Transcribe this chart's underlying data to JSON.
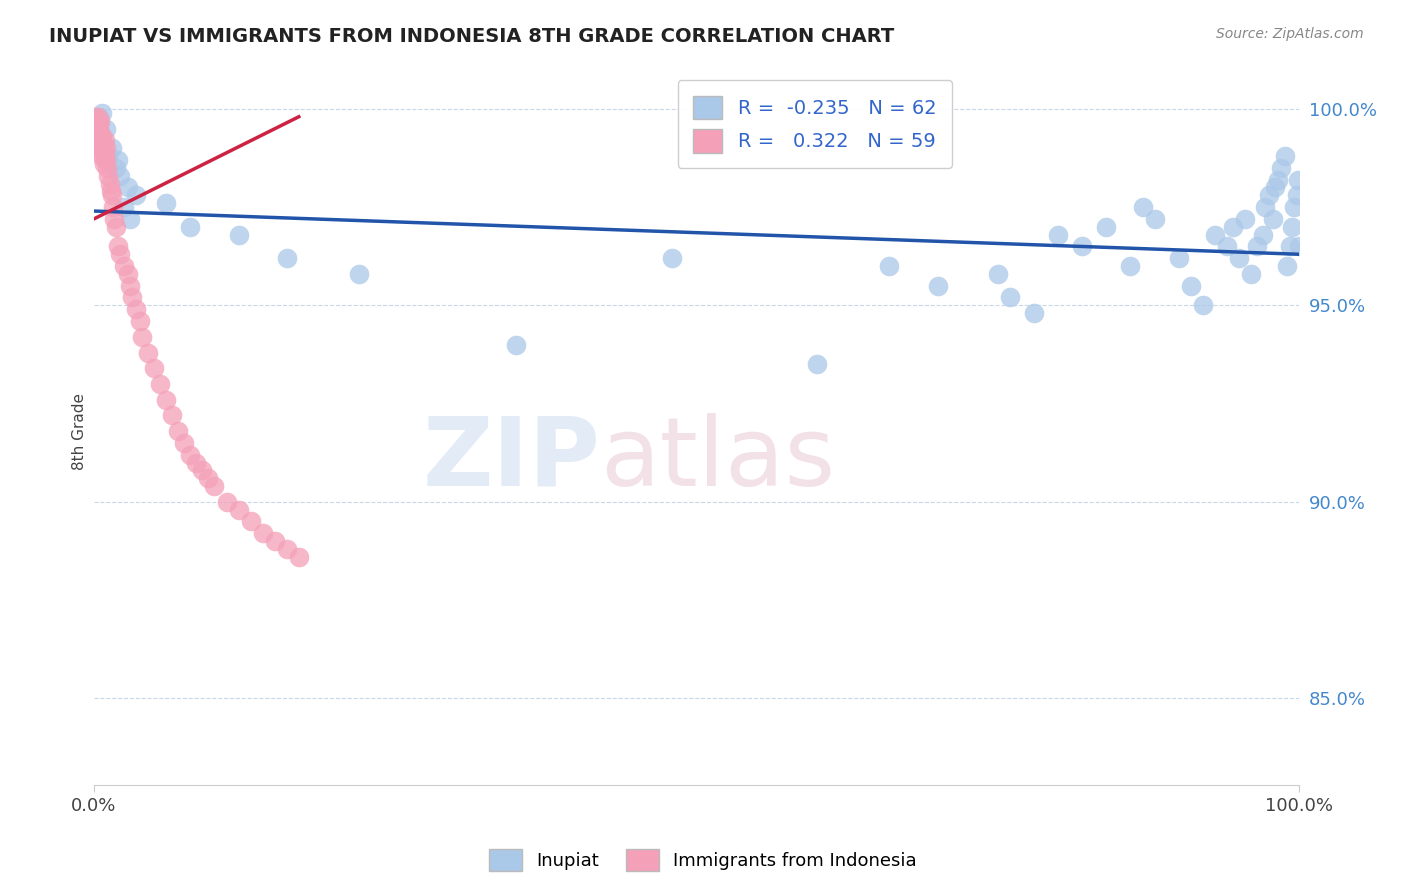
{
  "title": "INUPIAT VS IMMIGRANTS FROM INDONESIA 8TH GRADE CORRELATION CHART",
  "source": "Source: ZipAtlas.com",
  "ylabel": "8th Grade",
  "xlim": [
    0.0,
    1.0
  ],
  "ylim": [
    0.828,
    1.008
  ],
  "ytick_positions": [
    0.85,
    0.9,
    0.95,
    1.0
  ],
  "ytick_labels": [
    "85.0%",
    "90.0%",
    "95.0%",
    "100.0%"
  ],
  "blue_R": -0.235,
  "blue_N": 62,
  "pink_R": 0.322,
  "pink_N": 59,
  "blue_color": "#aac8e8",
  "pink_color": "#f4a0b8",
  "blue_line_color": "#2255aa",
  "pink_line_color": "#cc2244",
  "legend_blue_label": "Inupiat",
  "legend_pink_label": "Immigrants from Indonesia",
  "blue_x": [
    0.001,
    0.002,
    0.003,
    0.004,
    0.005,
    0.006,
    0.007,
    0.008,
    0.01,
    0.012,
    0.015,
    0.018,
    0.02,
    0.022,
    0.025,
    0.028,
    0.03,
    0.035,
    0.06,
    0.08,
    0.12,
    0.16,
    0.22,
    0.35,
    0.48,
    0.6,
    0.66,
    0.7,
    0.75,
    0.76,
    0.78,
    0.8,
    0.82,
    0.84,
    0.86,
    0.87,
    0.88,
    0.9,
    0.91,
    0.92,
    0.93,
    0.94,
    0.945,
    0.95,
    0.955,
    0.96,
    0.965,
    0.97,
    0.972,
    0.975,
    0.978,
    0.98,
    0.982,
    0.985,
    0.988,
    0.99,
    0.992,
    0.994,
    0.996,
    0.998,
    0.999,
    1.0
  ],
  "blue_y": [
    0.993,
    0.997,
    0.996,
    0.998,
    0.994,
    0.992,
    0.999,
    0.991,
    0.995,
    0.988,
    0.99,
    0.985,
    0.987,
    0.983,
    0.975,
    0.98,
    0.972,
    0.978,
    0.976,
    0.97,
    0.968,
    0.962,
    0.958,
    0.94,
    0.962,
    0.935,
    0.96,
    0.955,
    0.958,
    0.952,
    0.948,
    0.968,
    0.965,
    0.97,
    0.96,
    0.975,
    0.972,
    0.962,
    0.955,
    0.95,
    0.968,
    0.965,
    0.97,
    0.962,
    0.972,
    0.958,
    0.965,
    0.968,
    0.975,
    0.978,
    0.972,
    0.98,
    0.982,
    0.985,
    0.988,
    0.96,
    0.965,
    0.97,
    0.975,
    0.978,
    0.982,
    0.965
  ],
  "pink_x": [
    0.001,
    0.001,
    0.001,
    0.002,
    0.002,
    0.002,
    0.003,
    0.003,
    0.004,
    0.004,
    0.004,
    0.005,
    0.005,
    0.006,
    0.006,
    0.007,
    0.007,
    0.008,
    0.008,
    0.009,
    0.009,
    0.01,
    0.01,
    0.011,
    0.012,
    0.013,
    0.014,
    0.015,
    0.016,
    0.017,
    0.018,
    0.02,
    0.022,
    0.025,
    0.028,
    0.03,
    0.032,
    0.035,
    0.038,
    0.04,
    0.045,
    0.05,
    0.055,
    0.06,
    0.065,
    0.07,
    0.075,
    0.08,
    0.085,
    0.09,
    0.095,
    0.1,
    0.11,
    0.12,
    0.13,
    0.14,
    0.15,
    0.16,
    0.17
  ],
  "pink_y": [
    0.998,
    0.996,
    0.993,
    0.997,
    0.994,
    0.991,
    0.998,
    0.995,
    0.996,
    0.992,
    0.989,
    0.997,
    0.993,
    0.99,
    0.988,
    0.993,
    0.991,
    0.989,
    0.986,
    0.992,
    0.988,
    0.99,
    0.987,
    0.985,
    0.983,
    0.981,
    0.979,
    0.978,
    0.975,
    0.972,
    0.97,
    0.965,
    0.963,
    0.96,
    0.958,
    0.955,
    0.952,
    0.949,
    0.946,
    0.942,
    0.938,
    0.934,
    0.93,
    0.926,
    0.922,
    0.918,
    0.915,
    0.912,
    0.91,
    0.908,
    0.906,
    0.904,
    0.9,
    0.898,
    0.895,
    0.892,
    0.89,
    0.888,
    0.886
  ],
  "blue_line_x0": 0.0,
  "blue_line_x1": 1.0,
  "blue_line_y0": 0.974,
  "blue_line_y1": 0.963,
  "pink_line_x0": 0.0,
  "pink_line_x1": 0.17,
  "pink_line_y0": 0.972,
  "pink_line_y1": 0.998
}
